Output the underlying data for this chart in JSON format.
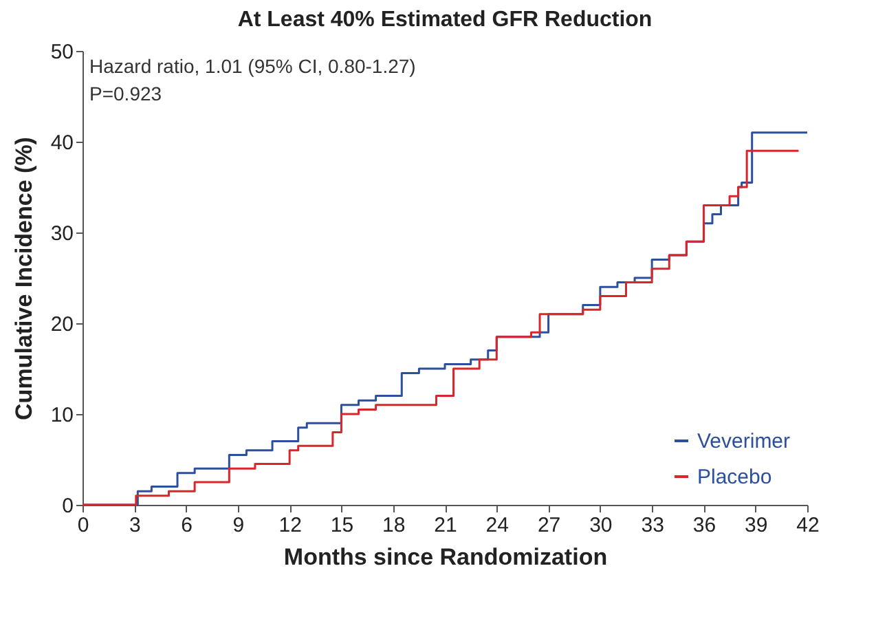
{
  "chart_data": {
    "type": "step",
    "title": "At Least 40% Estimated GFR Reduction",
    "xlabel": "Months since Randomization",
    "ylabel": "Cumulative Incidence (%)",
    "annotations": [
      "Hazard ratio, 1.01 (95% CI, 0.80-1.27)",
      "P=0.923"
    ],
    "xlim": [
      0,
      42
    ],
    "xticks": [
      0,
      3,
      6,
      9,
      12,
      15,
      18,
      21,
      24,
      27,
      30,
      33,
      36,
      39,
      42
    ],
    "ylim": [
      0,
      50
    ],
    "yticks": [
      0,
      10,
      20,
      30,
      40,
      50
    ],
    "grid": false,
    "legend": "bottom right",
    "line_style": "solid",
    "marker": "none",
    "series": [
      {
        "name": "Veverimer",
        "color": "#2c4f9e",
        "x": [
          0,
          3,
          3.2,
          4,
          5.5,
          6.5,
          8.5,
          9.5,
          11,
          12.5,
          13,
          15,
          16,
          17,
          18.5,
          19.5,
          21,
          22.5,
          23.5,
          24,
          26.5,
          27,
          29,
          30,
          31,
          32,
          33,
          34,
          35,
          36,
          36.5,
          37,
          38,
          38.2,
          38.8,
          42
        ],
        "values": [
          0,
          0,
          1.5,
          2,
          3.5,
          4,
          5.5,
          6,
          7,
          8.5,
          9,
          11,
          11.5,
          12,
          14.5,
          15,
          15.5,
          16,
          17,
          18.5,
          19,
          21,
          22,
          24,
          24.5,
          25,
          27,
          27.5,
          29,
          31,
          32,
          33,
          35,
          35.5,
          41,
          41
        ]
      },
      {
        "name": "Placebo",
        "color": "#d8262b",
        "x": [
          0,
          3,
          3.1,
          5,
          6.5,
          8.5,
          10,
          12,
          12.5,
          14.5,
          15,
          16,
          17,
          20.5,
          21.5,
          23,
          24,
          26,
          26.5,
          29,
          30,
          31.5,
          33,
          34,
          35,
          36,
          37.5,
          38,
          38.5,
          41.5
        ],
        "values": [
          0,
          0,
          1,
          1.5,
          2.5,
          4,
          4.5,
          6,
          6.5,
          8,
          10,
          10.5,
          11,
          12,
          15,
          16,
          18.5,
          19,
          21,
          21.5,
          23,
          24.5,
          26,
          27.5,
          29,
          33,
          34,
          35,
          39,
          39
        ]
      }
    ]
  }
}
